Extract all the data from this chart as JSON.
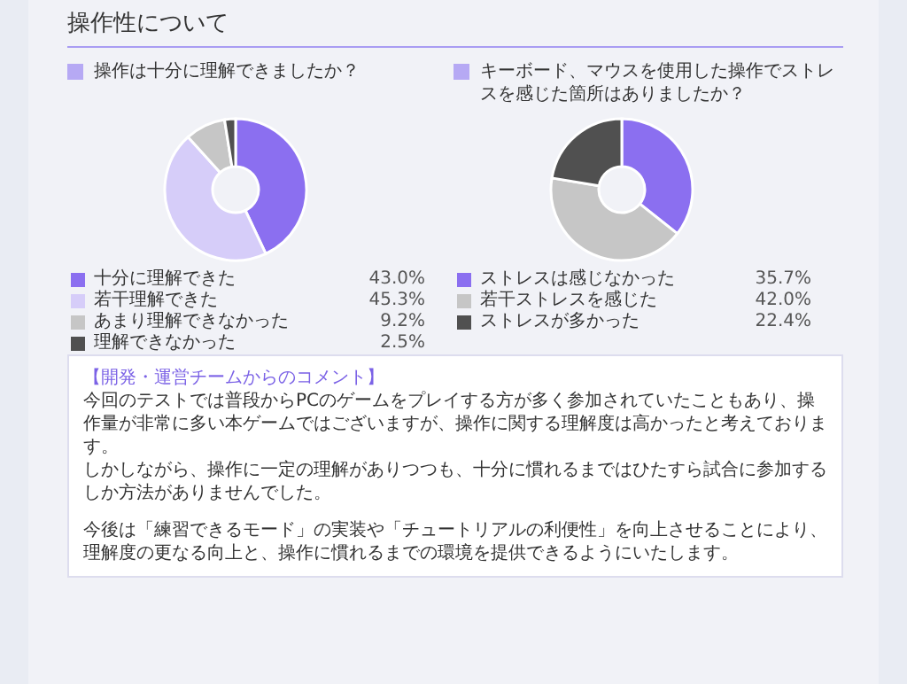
{
  "chart_data": [
    {
      "type": "other",
      "title": "操作性について"
    },
    {
      "type": "donut",
      "title": "操作は十分に理解できましたか？",
      "categories": [
        "十分に理解できた",
        "若干理解できた",
        "あまり理解できなかった",
        "理解できなかった"
      ],
      "values": [
        43.0,
        45.3,
        9.2,
        2.5
      ],
      "value_labels": [
        "43.0%",
        "45.3%",
        "9.2%",
        "2.5%"
      ],
      "colors": [
        "#8b6ff0",
        "#d6cdf9",
        "#c6c6c6",
        "#505050"
      ],
      "legend": "bottom"
    },
    {
      "type": "donut",
      "title": "キーボード、マウスを使用した操作でストレスを感じた箇所はありましたか？",
      "categories": [
        "ストレスは感じなかった",
        "若干ストレスを感じた",
        "ストレスが多かった"
      ],
      "values": [
        35.7,
        42.0,
        22.4
      ],
      "value_labels": [
        "35.7%",
        "42.0%",
        "22.4%"
      ],
      "colors": [
        "#8b6ff0",
        "#c6c6c6",
        "#505050"
      ],
      "legend": "bottom"
    },
    {
      "type": "other",
      "title": "【開発・運営チームからのコメント】",
      "annotations": [
        "今回のテストでは普段からPCのゲームをプレイする方が多く参加されていたこともあり、操作量が非常に多い本ゲームではございますが、操作に関する理解度は高かったと考えております。",
        "しかしながら、操作に一定の理解がありつつも、十分に慣れるまではひたすら試合に参加するしか方法がありませんでした。",
        "今後は「練習できるモード」の実装や「チュートリアルの利便性」を向上させることにより、理解度の更なる向上と、操作に慣れるまでの環境を提供できるようにいたします。"
      ]
    }
  ]
}
